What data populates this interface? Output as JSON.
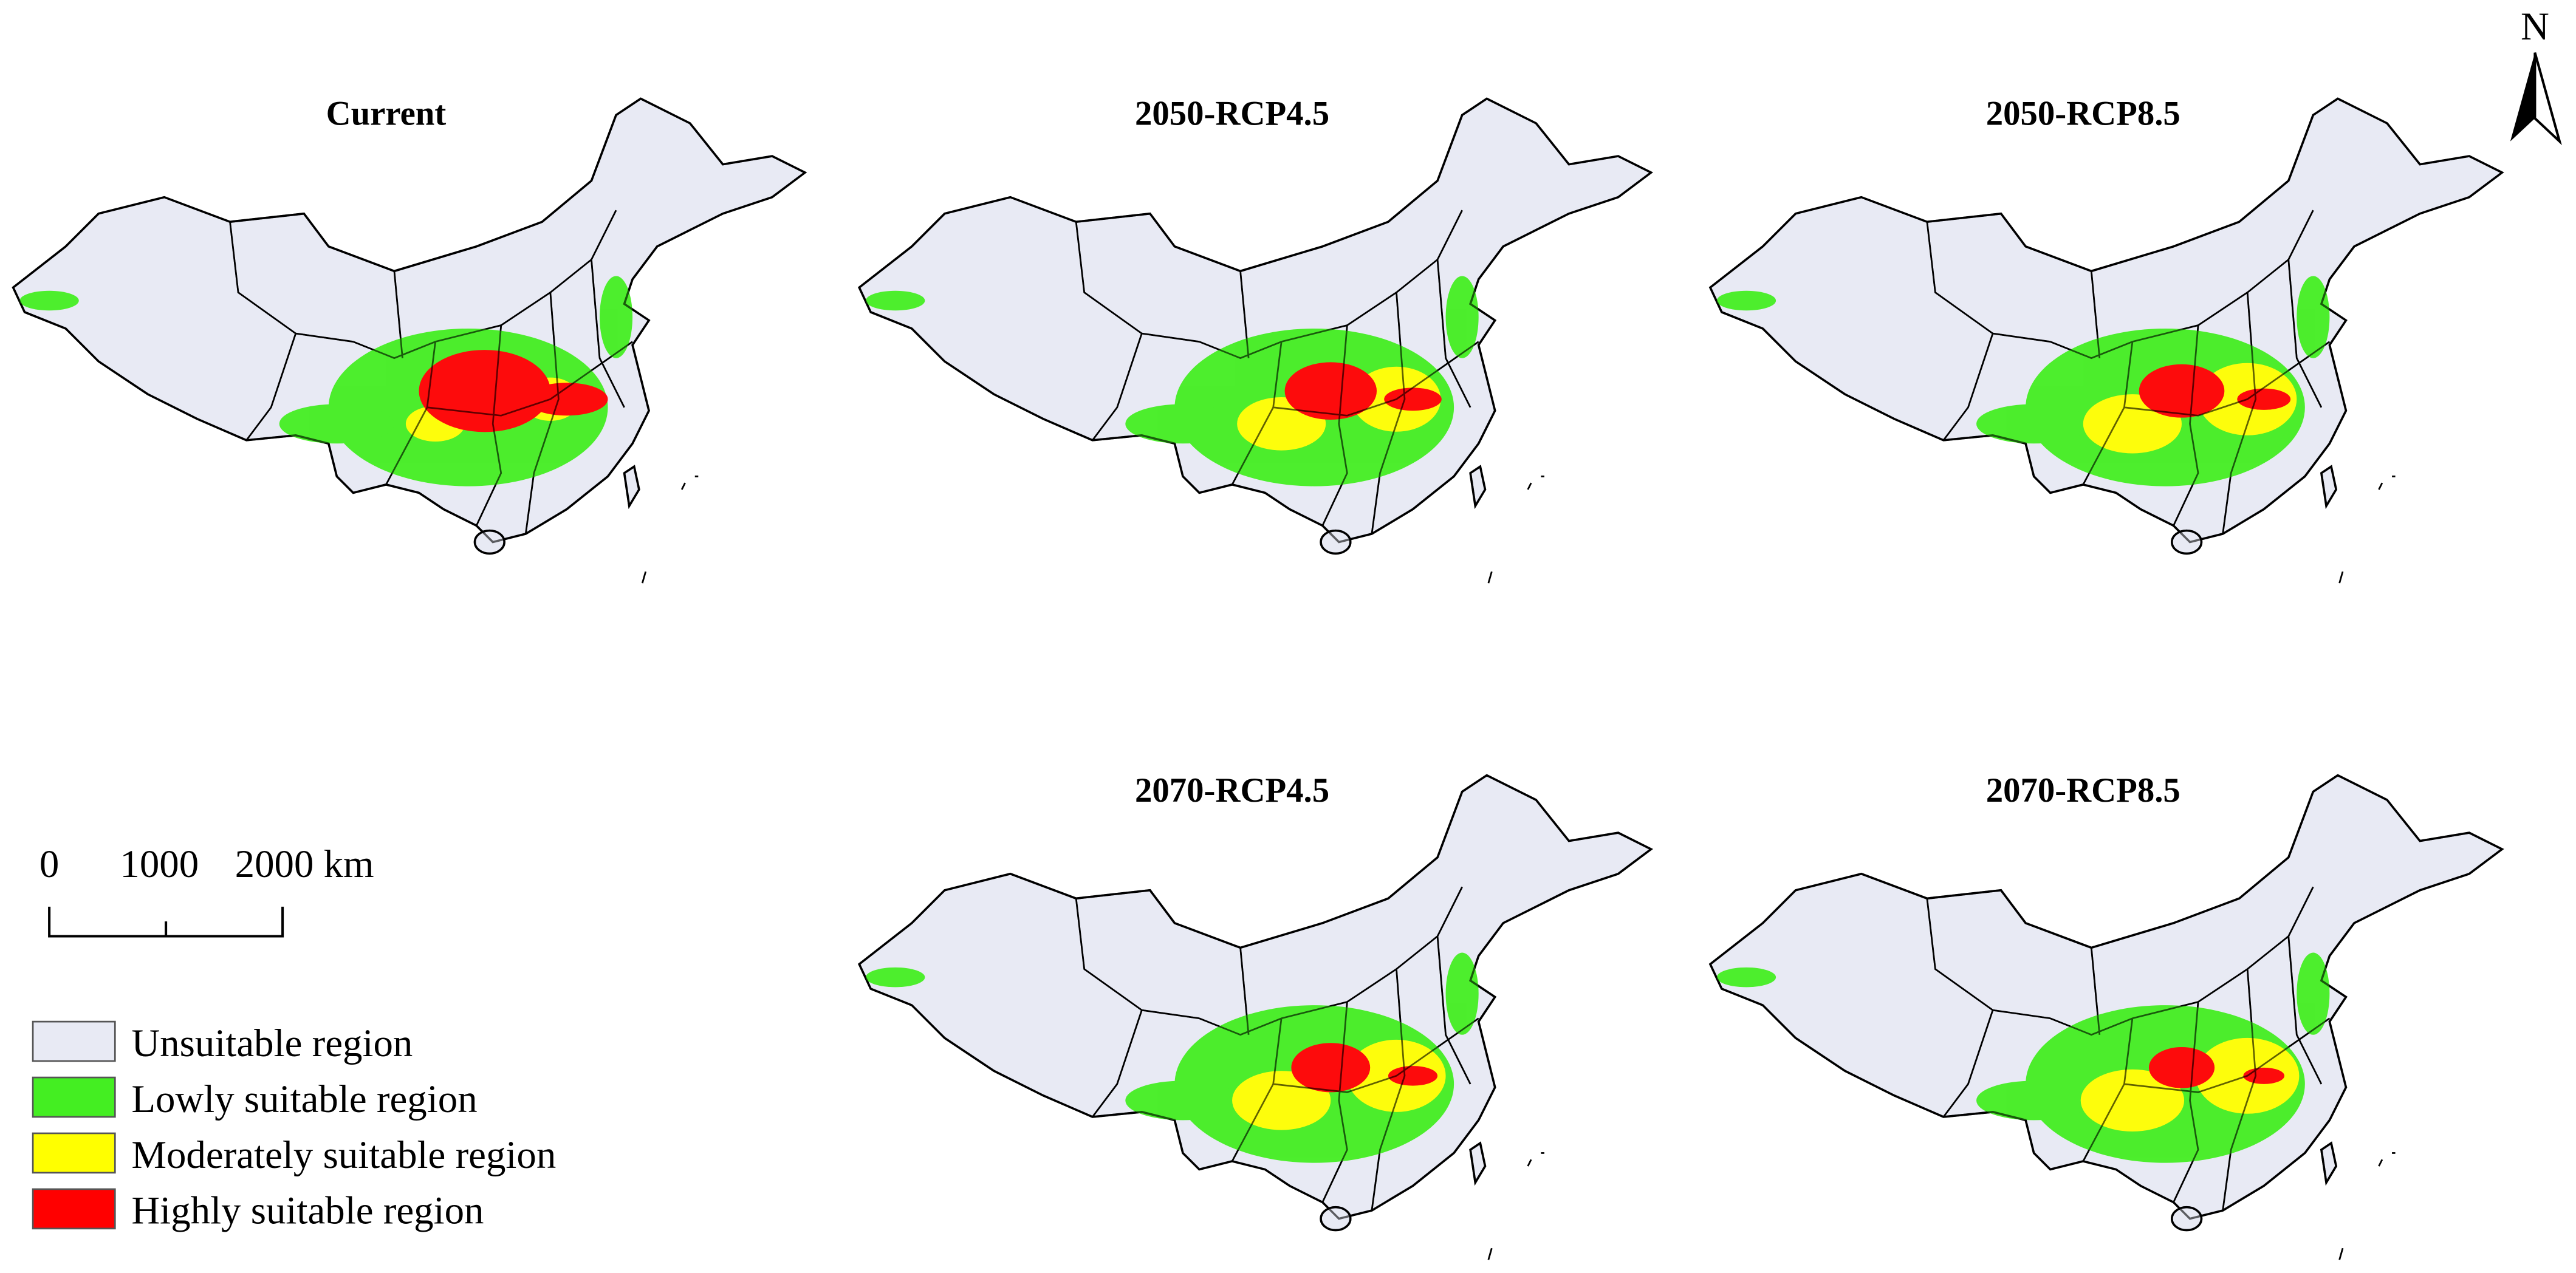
{
  "panels": [
    {
      "title": "Current"
    },
    {
      "title": "2050-RCP4.5"
    },
    {
      "title": "2050-RCP8.5"
    },
    {
      "title": "2070-RCP4.5"
    },
    {
      "title": "2070-RCP8.5"
    }
  ],
  "north_arrow": {
    "label": "N"
  },
  "scale_bar": {
    "labels": [
      "0",
      "1000",
      "2000 km"
    ]
  },
  "legend": {
    "items": [
      {
        "label": "Unsuitable region",
        "color": "#e8eaf4"
      },
      {
        "label": "Lowly suitable region",
        "color": "#44ee22"
      },
      {
        "label": "Moderately suitable region",
        "color": "#ffff00"
      },
      {
        "label": "Highly suitable region",
        "color": "#ff0000"
      }
    ]
  }
}
